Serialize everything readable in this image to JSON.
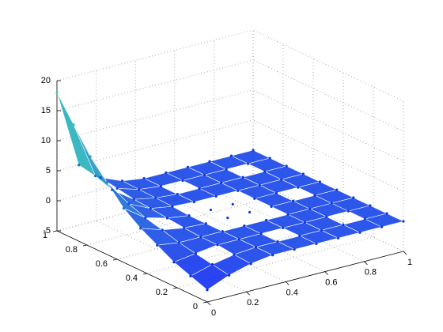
{
  "chart_data": {
    "type": "surface3d",
    "x": [
      0,
      0.111,
      0.222,
      0.333,
      0.444,
      0.556,
      0.667,
      0.778,
      0.889,
      1
    ],
    "y": [
      0,
      0.111,
      0.222,
      0.333,
      0.444,
      0.556,
      0.667,
      0.778,
      0.889,
      1
    ],
    "z": [
      [
        -3,
        -1.5,
        -0.5,
        0,
        0,
        0,
        0,
        0,
        0,
        0
      ],
      [
        -2,
        -1,
        -0.3,
        0,
        0,
        0,
        0,
        0,
        0,
        0
      ],
      [
        -1,
        -0.5,
        0,
        0,
        0,
        0,
        0,
        0,
        0,
        0
      ],
      [
        0.5,
        0,
        0,
        0,
        0,
        0,
        0,
        0,
        0,
        0
      ],
      [
        2,
        0.8,
        0.2,
        0,
        0,
        0,
        0,
        0,
        0,
        0
      ],
      [
        4,
        1.5,
        0.5,
        0,
        0,
        0,
        0,
        0,
        0,
        0
      ],
      [
        7,
        2.5,
        0.8,
        0.2,
        0,
        0,
        0,
        0,
        0,
        0
      ],
      [
        10,
        3.5,
        1,
        0.3,
        0,
        0,
        0,
        0,
        0,
        0
      ],
      [
        14,
        4.5,
        1.5,
        0.4,
        0,
        0,
        0,
        0,
        0,
        0
      ],
      [
        18,
        5,
        2,
        0.5,
        0,
        0,
        0,
        0,
        0,
        0
      ]
    ],
    "colormap": [
      "#0000ff",
      "#20e0a0"
    ],
    "xlim": [
      0,
      1
    ],
    "ylim": [
      0,
      1
    ],
    "zlim": [
      -5,
      20
    ],
    "xticks": [
      0,
      0.2,
      0.4,
      0.6,
      0.8,
      1
    ],
    "yticks": [
      0,
      0.2,
      0.4,
      0.6,
      0.8,
      1
    ],
    "zticks": [
      -5,
      0,
      5,
      10,
      15,
      20
    ],
    "grid": true
  }
}
